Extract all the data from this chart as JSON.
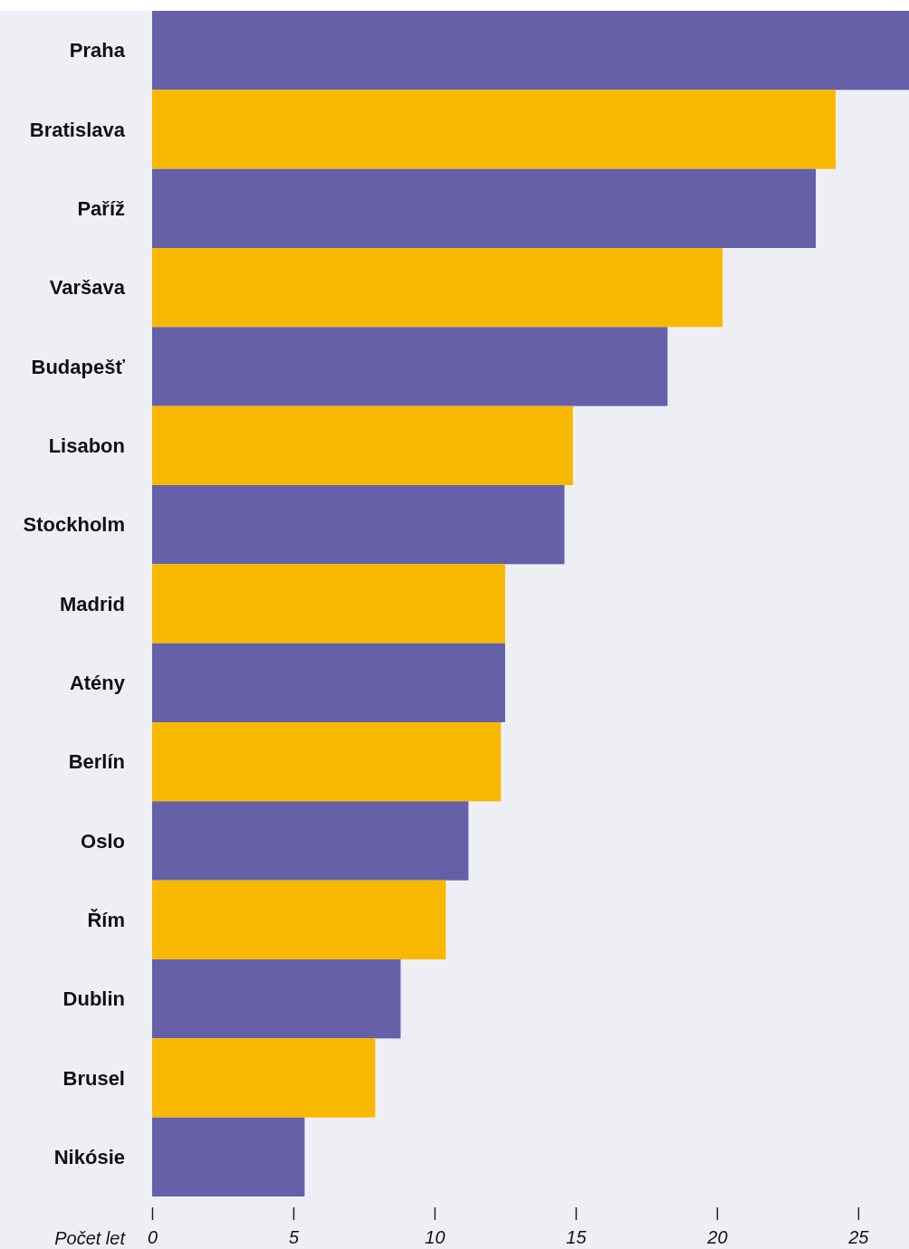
{
  "chart_data": {
    "type": "bar",
    "orientation": "horizontal",
    "xlabel": "Počet let",
    "categories": [
      "Praha",
      "Bratislava",
      "Paříž",
      "Varšava",
      "Budapešť",
      "Lisabon",
      "Stockholm",
      "Madrid",
      "Atény",
      "Berlín",
      "Oslo",
      "Řím",
      "Dublin",
      "Brusel",
      "Nikósie"
    ],
    "values": [
      26.8,
      24.2,
      23.5,
      20.2,
      18.25,
      14.9,
      14.6,
      12.5,
      12.5,
      12.35,
      11.2,
      10.4,
      8.8,
      7.9,
      5.4
    ],
    "colors": [
      "#6560a8",
      "#f9b800",
      "#6560a8",
      "#f9b800",
      "#6560a8",
      "#f9b800",
      "#6560a8",
      "#f9b800",
      "#6560a8",
      "#f9b800",
      "#6560a8",
      "#f9b800",
      "#6560a8",
      "#f9b800",
      "#6560a8"
    ],
    "xlim": [
      0,
      26.8
    ],
    "xticks": [
      0,
      5,
      10,
      15,
      20,
      25
    ],
    "grid": false
  }
}
